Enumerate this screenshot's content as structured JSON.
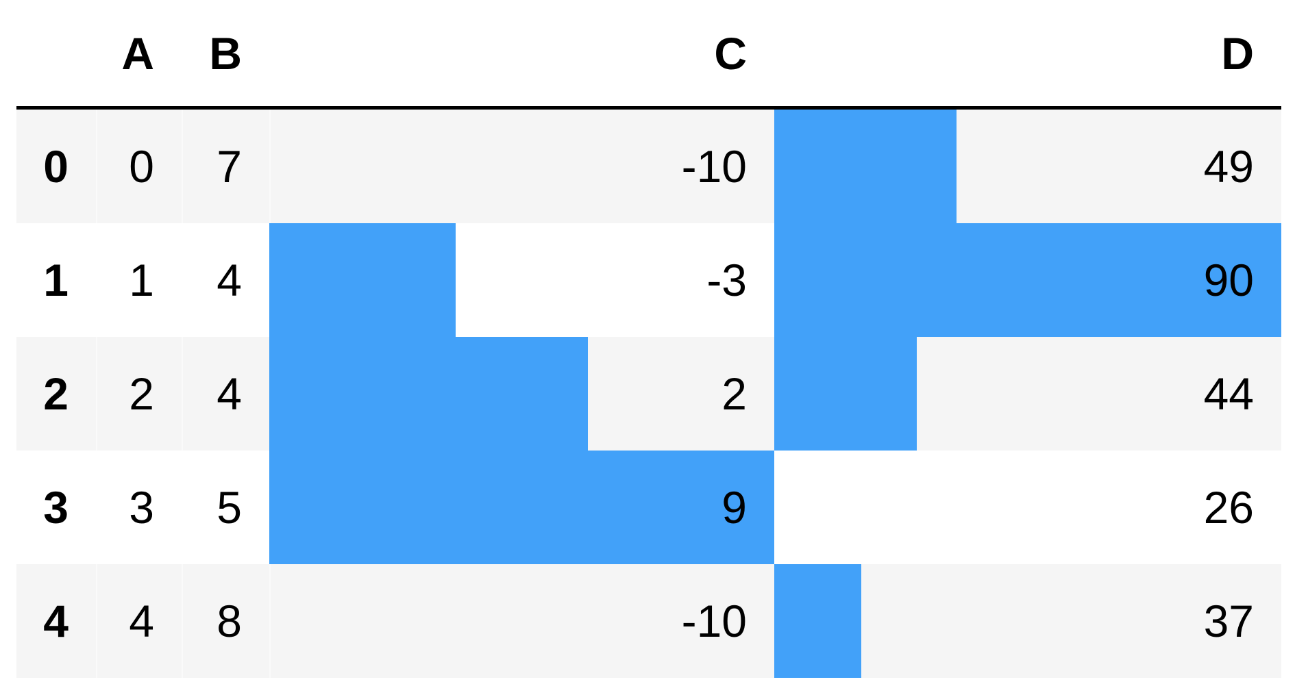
{
  "chart_data": {
    "type": "table",
    "columns": [
      "",
      "A",
      "B",
      "C",
      "D"
    ],
    "rows": [
      {
        "index": "0",
        "A": "0",
        "B": "7",
        "C": "-10",
        "D": "49"
      },
      {
        "index": "1",
        "A": "1",
        "B": "4",
        "C": "-3",
        "D": "90"
      },
      {
        "index": "2",
        "A": "2",
        "B": "4",
        "C": "2",
        "D": "44"
      },
      {
        "index": "3",
        "A": "3",
        "B": "5",
        "C": "9",
        "D": "26"
      },
      {
        "index": "4",
        "A": "4",
        "B": "8",
        "C": "-10",
        "D": "37"
      }
    ],
    "bar_columns": [
      "C",
      "D"
    ],
    "bar_color": "#42a1f9",
    "stripe_color": "#f5f5f5"
  }
}
